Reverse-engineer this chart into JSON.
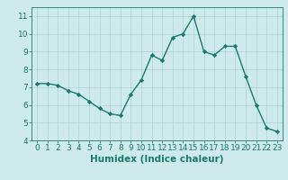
{
  "x": [
    0,
    1,
    2,
    3,
    4,
    5,
    6,
    7,
    8,
    9,
    10,
    11,
    12,
    13,
    14,
    15,
    16,
    17,
    18,
    19,
    20,
    21,
    22,
    23
  ],
  "y": [
    7.2,
    7.2,
    7.1,
    6.8,
    6.6,
    6.2,
    5.8,
    5.5,
    5.4,
    6.6,
    7.4,
    8.8,
    8.5,
    9.8,
    10.0,
    11.0,
    9.0,
    8.8,
    9.3,
    9.3,
    7.6,
    6.0,
    4.7,
    4.5
  ],
  "line_color": "#1a7a6e",
  "marker": "D",
  "marker_size": 2.2,
  "background_color": "#ceeaea",
  "grid_color": "#b0d4d4",
  "xlabel": "Humidex (Indice chaleur)",
  "xlim": [
    -0.5,
    23.5
  ],
  "ylim": [
    4,
    11.5
  ],
  "yticks": [
    4,
    5,
    6,
    7,
    8,
    9,
    10,
    11
  ],
  "xticks": [
    0,
    1,
    2,
    3,
    4,
    5,
    6,
    7,
    8,
    9,
    10,
    11,
    12,
    13,
    14,
    15,
    16,
    17,
    18,
    19,
    20,
    21,
    22,
    23
  ],
  "tick_label_fontsize": 6.5,
  "xlabel_fontsize": 7.5,
  "linewidth": 1.0
}
